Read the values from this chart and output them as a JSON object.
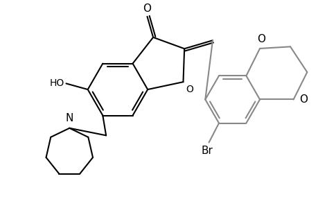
{
  "bg_color": "#ffffff",
  "line_color": "#000000",
  "gray_color": "#888888",
  "line_width": 1.5,
  "figsize": [
    4.6,
    3.0
  ],
  "dpi": 100,
  "xlim": [
    0,
    9.2
  ],
  "ylim": [
    0,
    6.0
  ]
}
